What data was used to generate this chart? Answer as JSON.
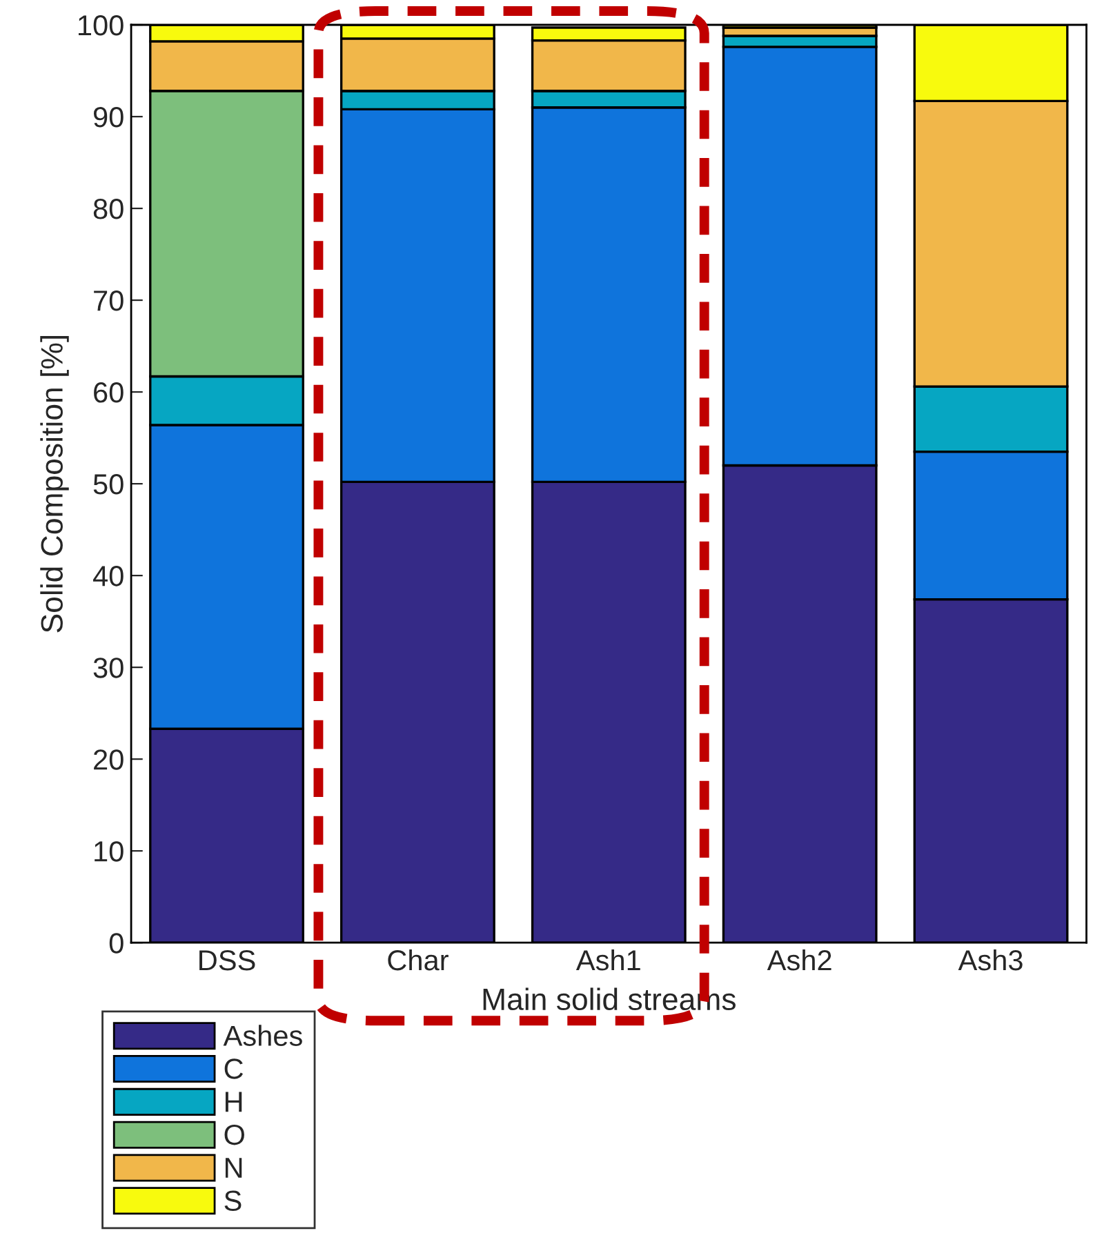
{
  "chart_data": {
    "type": "bar",
    "stacked": true,
    "xlabel": "Main solid streams",
    "ylabel": "Solid Composition [%]",
    "categories": [
      "DSS",
      "Char",
      "Ash1",
      "Ash2",
      "Ash3"
    ],
    "series": [
      {
        "name": "Ashes",
        "color": "#352a87",
        "values": [
          23.3,
          50.2,
          50.2,
          52.0,
          37.4
        ]
      },
      {
        "name": "C",
        "color": "#0f74dc",
        "values": [
          33.1,
          40.6,
          40.8,
          45.6,
          16.1
        ]
      },
      {
        "name": "H",
        "color": "#06a6c2",
        "values": [
          5.3,
          2.0,
          1.8,
          1.2,
          7.1
        ]
      },
      {
        "name": "O",
        "color": "#7dbf7c",
        "values": [
          31.1,
          0,
          0,
          0,
          0
        ]
      },
      {
        "name": "N",
        "color": "#f1b74a",
        "values": [
          5.4,
          5.7,
          5.5,
          0.9,
          31.1
        ]
      },
      {
        "name": "S",
        "color": "#f8fa0d",
        "values": [
          1.8,
          1.5,
          1.4,
          0.3,
          8.3
        ]
      }
    ],
    "ylim": [
      0,
      100
    ],
    "yticks": [
      0,
      10,
      20,
      30,
      40,
      50,
      60,
      70,
      80,
      90,
      100
    ],
    "legend": "bottom left",
    "grid": false
  }
}
